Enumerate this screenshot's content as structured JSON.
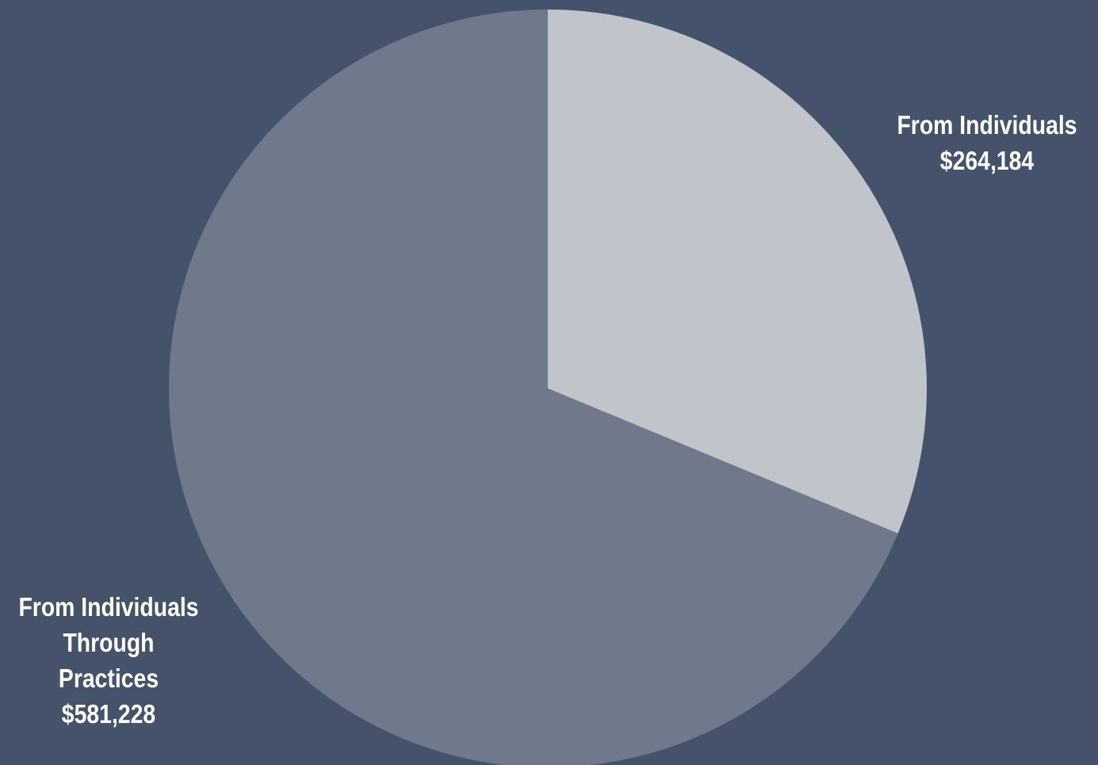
{
  "chart_data": {
    "type": "pie",
    "slices": [
      {
        "name_lines": [
          "From Individuals"
        ],
        "value": 264184,
        "value_label": "$264,184",
        "color": "#c0c4cb"
      },
      {
        "name_lines": [
          "From Individuals",
          "Through",
          "Practices"
        ],
        "value": 581228,
        "value_label": "$581,228",
        "color": "#6e7a89"
      }
    ],
    "start_angle_deg": 0,
    "direction": "clockwise",
    "background_color": "#44536a",
    "label_color": "#ffffff"
  }
}
